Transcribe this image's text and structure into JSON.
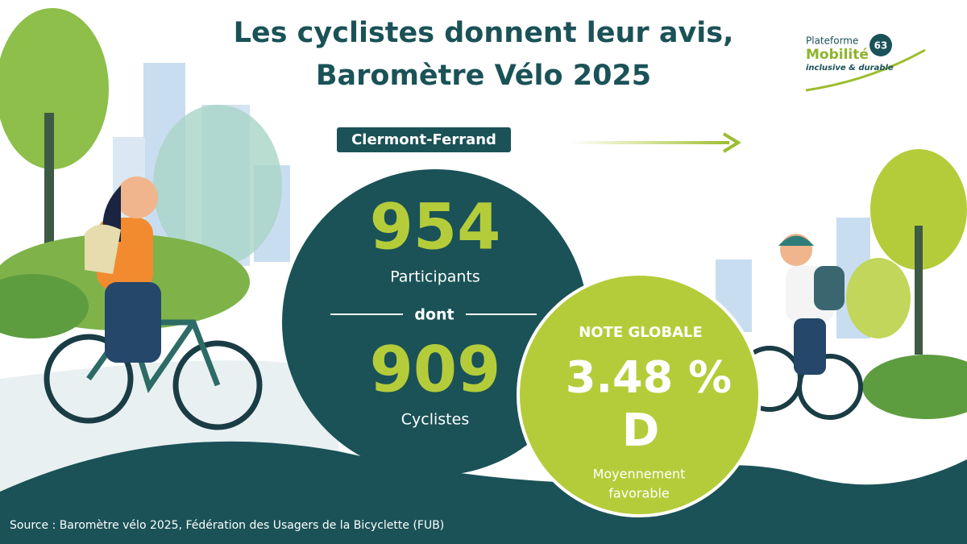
{
  "header": {
    "title_lines": [
      "Les cyclistes donnent leur avis,",
      "Baromètre Vélo 2025"
    ]
  },
  "logo": {
    "line1": "Plateforme",
    "line2": "Mobilité",
    "line3": "inclusive & durable",
    "badge": "63"
  },
  "city": "Clermont-Ferrand",
  "participants": {
    "count": "954",
    "label": "Participants"
  },
  "separator": "dont",
  "cyclists": {
    "count": "909",
    "label": "Cyclistes"
  },
  "rating": {
    "heading": "NOTE GLOBALE",
    "score": "3.48 %",
    "grade": "D",
    "verdict_lines": [
      "Moyennement",
      "favorable"
    ]
  },
  "source": "Source : Baromètre vélo 2025, Fédération des Usagers de la Bicyclette (FUB)"
}
